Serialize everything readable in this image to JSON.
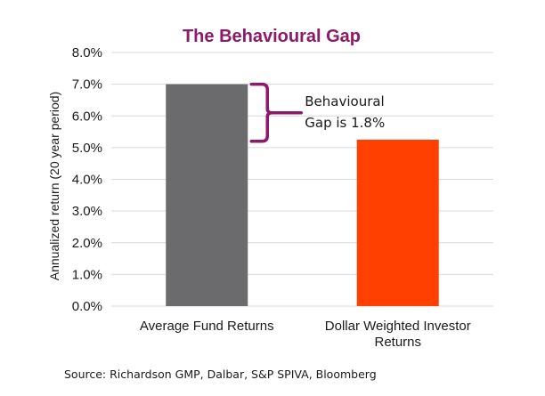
{
  "chart_data": {
    "type": "bar",
    "title": "The Behavioural Gap",
    "ylabel": "Annualized return (20 year period)",
    "xlabel": "",
    "categories": [
      [
        "Average Fund Returns"
      ],
      [
        "Dollar Weighted Investor",
        "Returns"
      ]
    ],
    "values": [
      7.0,
      5.25
    ],
    "bar_colors": [
      "#6b6b6e",
      "#ff4000"
    ],
    "ylim": [
      0,
      8
    ],
    "yticks": [
      "0.0%",
      "1.0%",
      "2.0%",
      "3.0%",
      "4.0%",
      "5.0%",
      "6.0%",
      "7.0%",
      "8.0%"
    ],
    "grid": true,
    "annotation": {
      "lines": [
        "Behavioural",
        "Gap is 1.8%"
      ],
      "bracket_from": 5.2,
      "bracket_to": 7.0,
      "bracket_color": "#8b1a6b"
    }
  },
  "source": "Source: Richardson GMP, Dalbar, S&P SPIVA, Bloomberg",
  "colors": {
    "title": "#8b1a6b",
    "grid": "#d9d9d9"
  }
}
